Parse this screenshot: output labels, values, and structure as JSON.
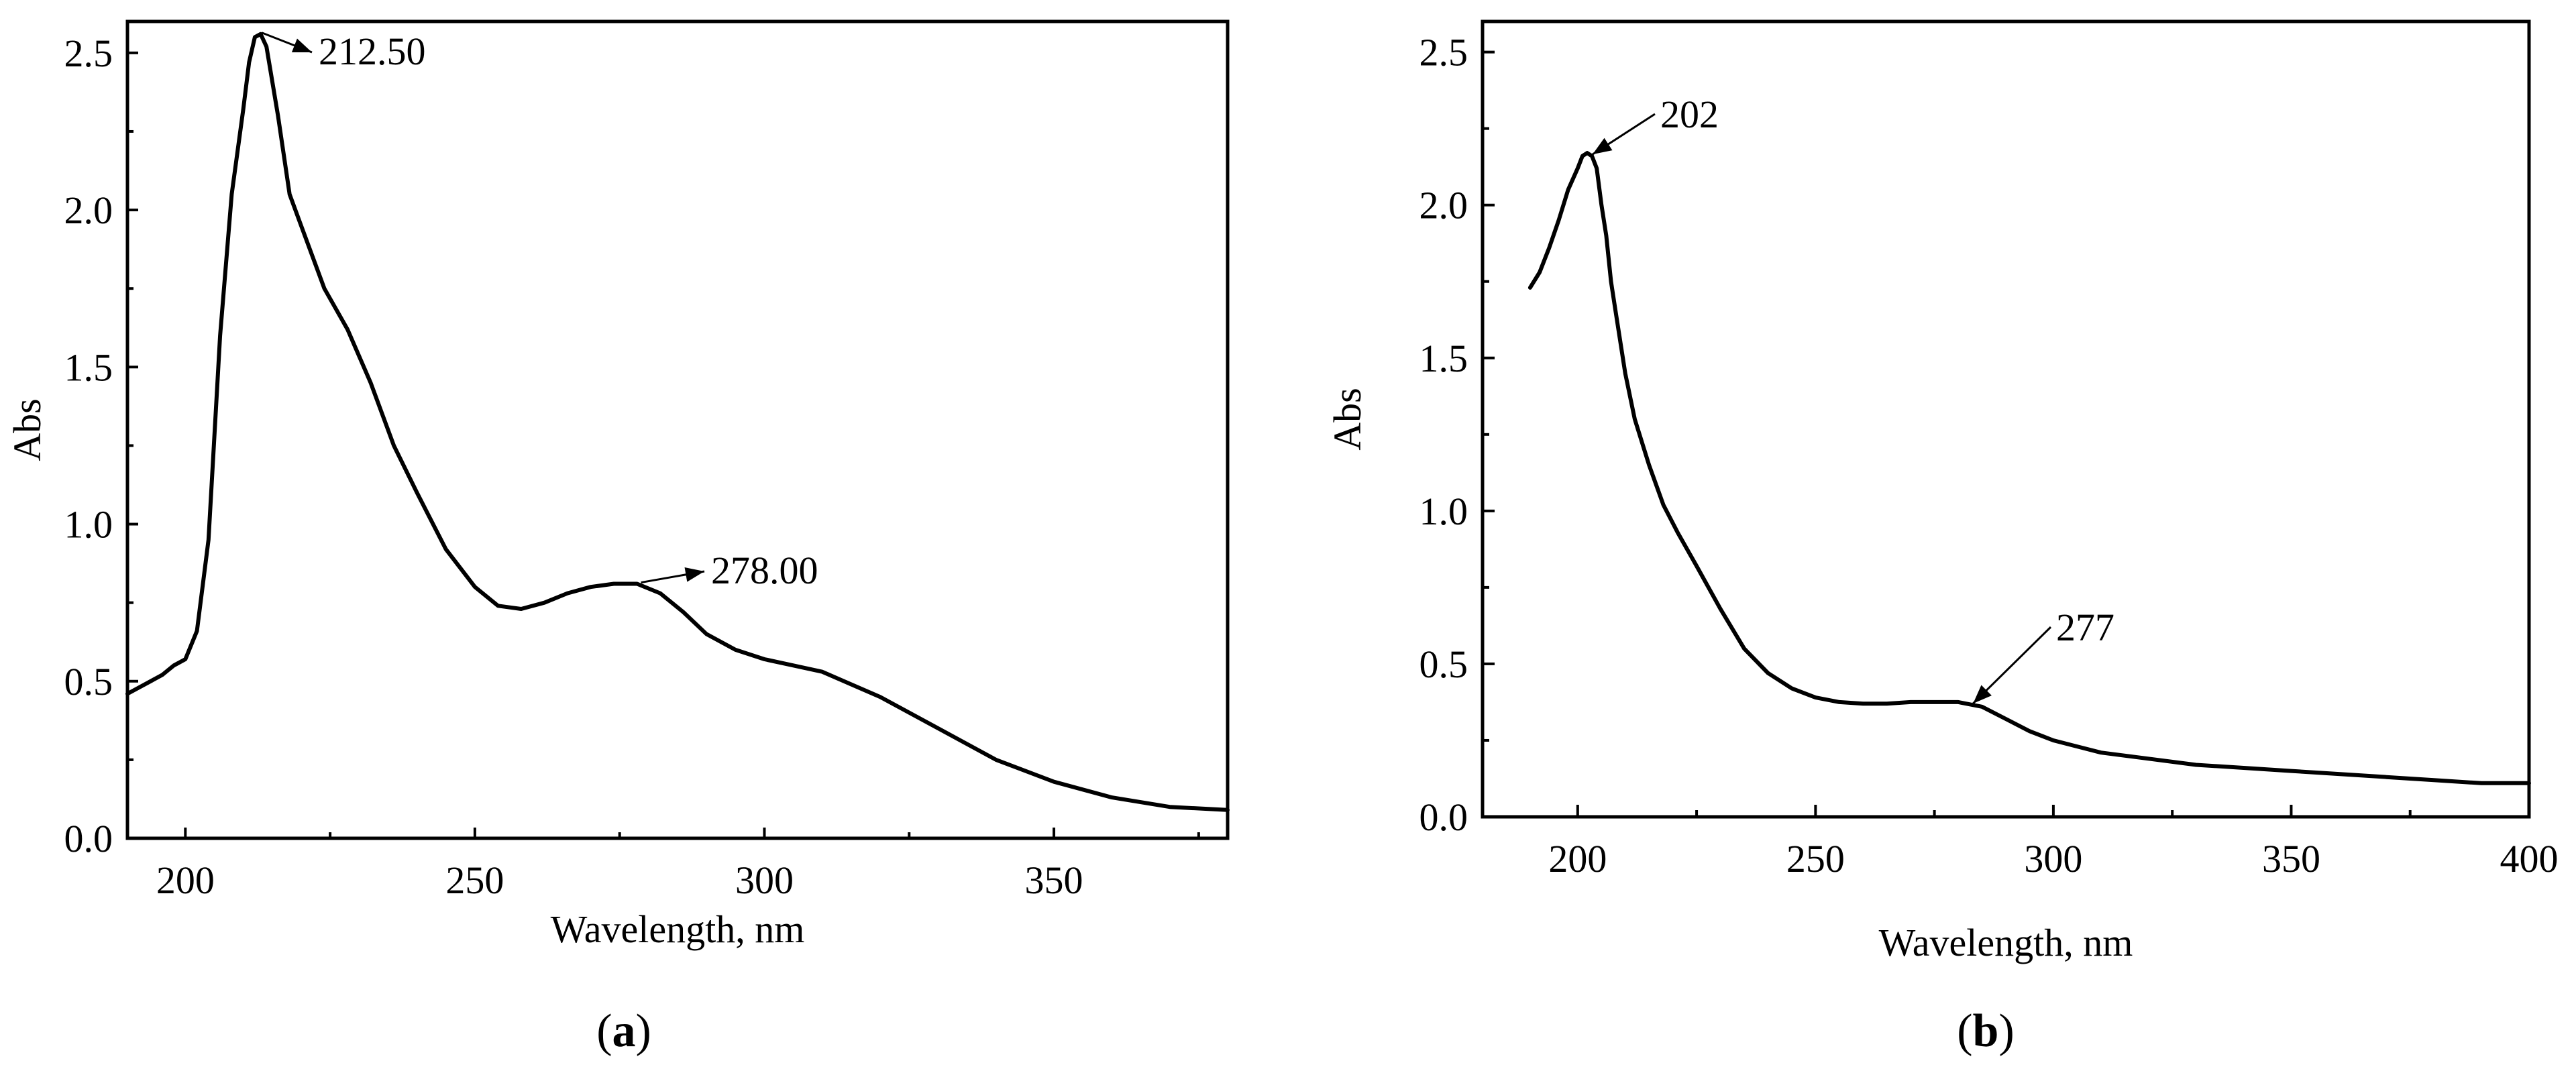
{
  "chart_data": [
    {
      "type": "line",
      "panel_label": "a",
      "xlabel": "Wavelength, nm",
      "ylabel": "Abs",
      "xlim": [
        190,
        380
      ],
      "ylim": [
        0,
        2.6
      ],
      "xticks": [
        200,
        250,
        300,
        350
      ],
      "yticks": [
        0.0,
        0.5,
        1.0,
        1.5,
        2.0,
        2.5
      ],
      "grid": false,
      "series": [
        {
          "x": [
            190,
            192,
            194,
            196,
            198,
            200,
            202,
            204,
            206,
            208,
            210,
            211,
            212,
            213,
            214,
            216,
            218,
            220,
            224,
            228,
            232,
            236,
            240,
            245,
            250,
            254,
            258,
            262,
            266,
            270,
            274,
            278,
            282,
            286,
            290,
            295,
            300,
            305,
            310,
            315,
            320,
            330,
            340,
            350,
            360,
            370,
            380
          ],
          "y": [
            0.46,
            0.48,
            0.5,
            0.52,
            0.55,
            0.57,
            0.66,
            0.95,
            1.6,
            2.05,
            2.32,
            2.47,
            2.55,
            2.56,
            2.52,
            2.3,
            2.05,
            1.95,
            1.75,
            1.62,
            1.45,
            1.25,
            1.1,
            0.92,
            0.8,
            0.74,
            0.73,
            0.75,
            0.78,
            0.8,
            0.81,
            0.81,
            0.78,
            0.72,
            0.65,
            0.6,
            0.57,
            0.55,
            0.53,
            0.49,
            0.45,
            0.35,
            0.25,
            0.18,
            0.13,
            0.1,
            0.09
          ]
        }
      ],
      "annotations": [
        {
          "text": "212.50",
          "x": 212.5,
          "y": 2.56
        },
        {
          "text": "278.00",
          "x": 278,
          "y": 0.81
        }
      ]
    },
    {
      "type": "line",
      "panel_label": "b",
      "xlabel": "Wavelength, nm",
      "ylabel": "Abs",
      "xlim": [
        180,
        400
      ],
      "ylim": [
        0,
        2.6
      ],
      "xticks": [
        200,
        250,
        300,
        350,
        400
      ],
      "yticks": [
        0.0,
        0.5,
        1.0,
        1.5,
        2.0,
        2.5
      ],
      "grid": false,
      "series": [
        {
          "x": [
            190,
            192,
            194,
            196,
            198,
            200,
            201,
            202,
            203,
            204,
            205,
            206,
            207,
            208,
            210,
            212,
            215,
            218,
            221,
            225,
            230,
            235,
            240,
            245,
            250,
            255,
            260,
            265,
            270,
            275,
            280,
            285,
            290,
            295,
            300,
            305,
            310,
            320,
            330,
            340,
            350,
            360,
            370,
            380,
            390,
            400
          ],
          "y": [
            1.73,
            1.78,
            1.86,
            1.95,
            2.05,
            2.12,
            2.16,
            2.17,
            2.16,
            2.12,
            2.0,
            1.9,
            1.75,
            1.65,
            1.45,
            1.3,
            1.15,
            1.02,
            0.93,
            0.82,
            0.68,
            0.55,
            0.47,
            0.42,
            0.39,
            0.375,
            0.37,
            0.37,
            0.375,
            0.375,
            0.375,
            0.36,
            0.32,
            0.28,
            0.25,
            0.23,
            0.21,
            0.19,
            0.17,
            0.16,
            0.15,
            0.14,
            0.13,
            0.12,
            0.11,
            0.11
          ]
        }
      ],
      "annotations": [
        {
          "text": "202",
          "x": 202,
          "y": 2.17
        },
        {
          "text": "277",
          "x": 282,
          "y": 0.375
        }
      ]
    }
  ]
}
